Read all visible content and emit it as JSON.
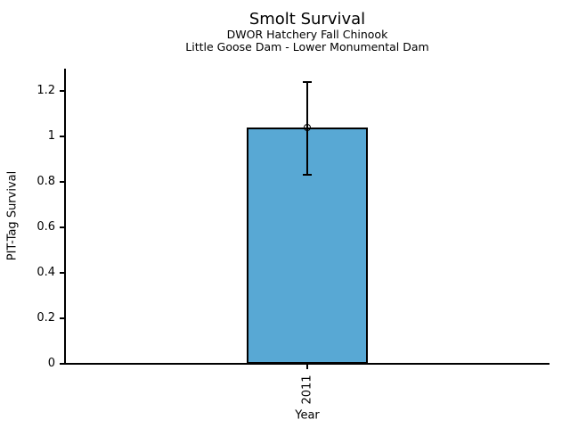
{
  "chart_data": {
    "type": "bar",
    "title": "Smolt Survival",
    "subtitle1": "DWOR Hatchery Fall Chinook",
    "subtitle2": "Little Goose Dam - Lower Monumental Dam",
    "xlabel": "Year",
    "ylabel": "PIT-Tag Survival",
    "categories": [
      "2011"
    ],
    "values": [
      1.04
    ],
    "error_upper": [
      1.24
    ],
    "error_lower": [
      0.83
    ],
    "ylim": [
      0,
      1.3
    ],
    "yticks": [
      "0",
      "0.2",
      "0.4",
      "0.6",
      "0.8",
      "1",
      "1.2"
    ],
    "grid": "off",
    "legend": "none",
    "bar_color": "#58A8D4",
    "edge_color": "#000000",
    "background_color": "#ffffff"
  }
}
